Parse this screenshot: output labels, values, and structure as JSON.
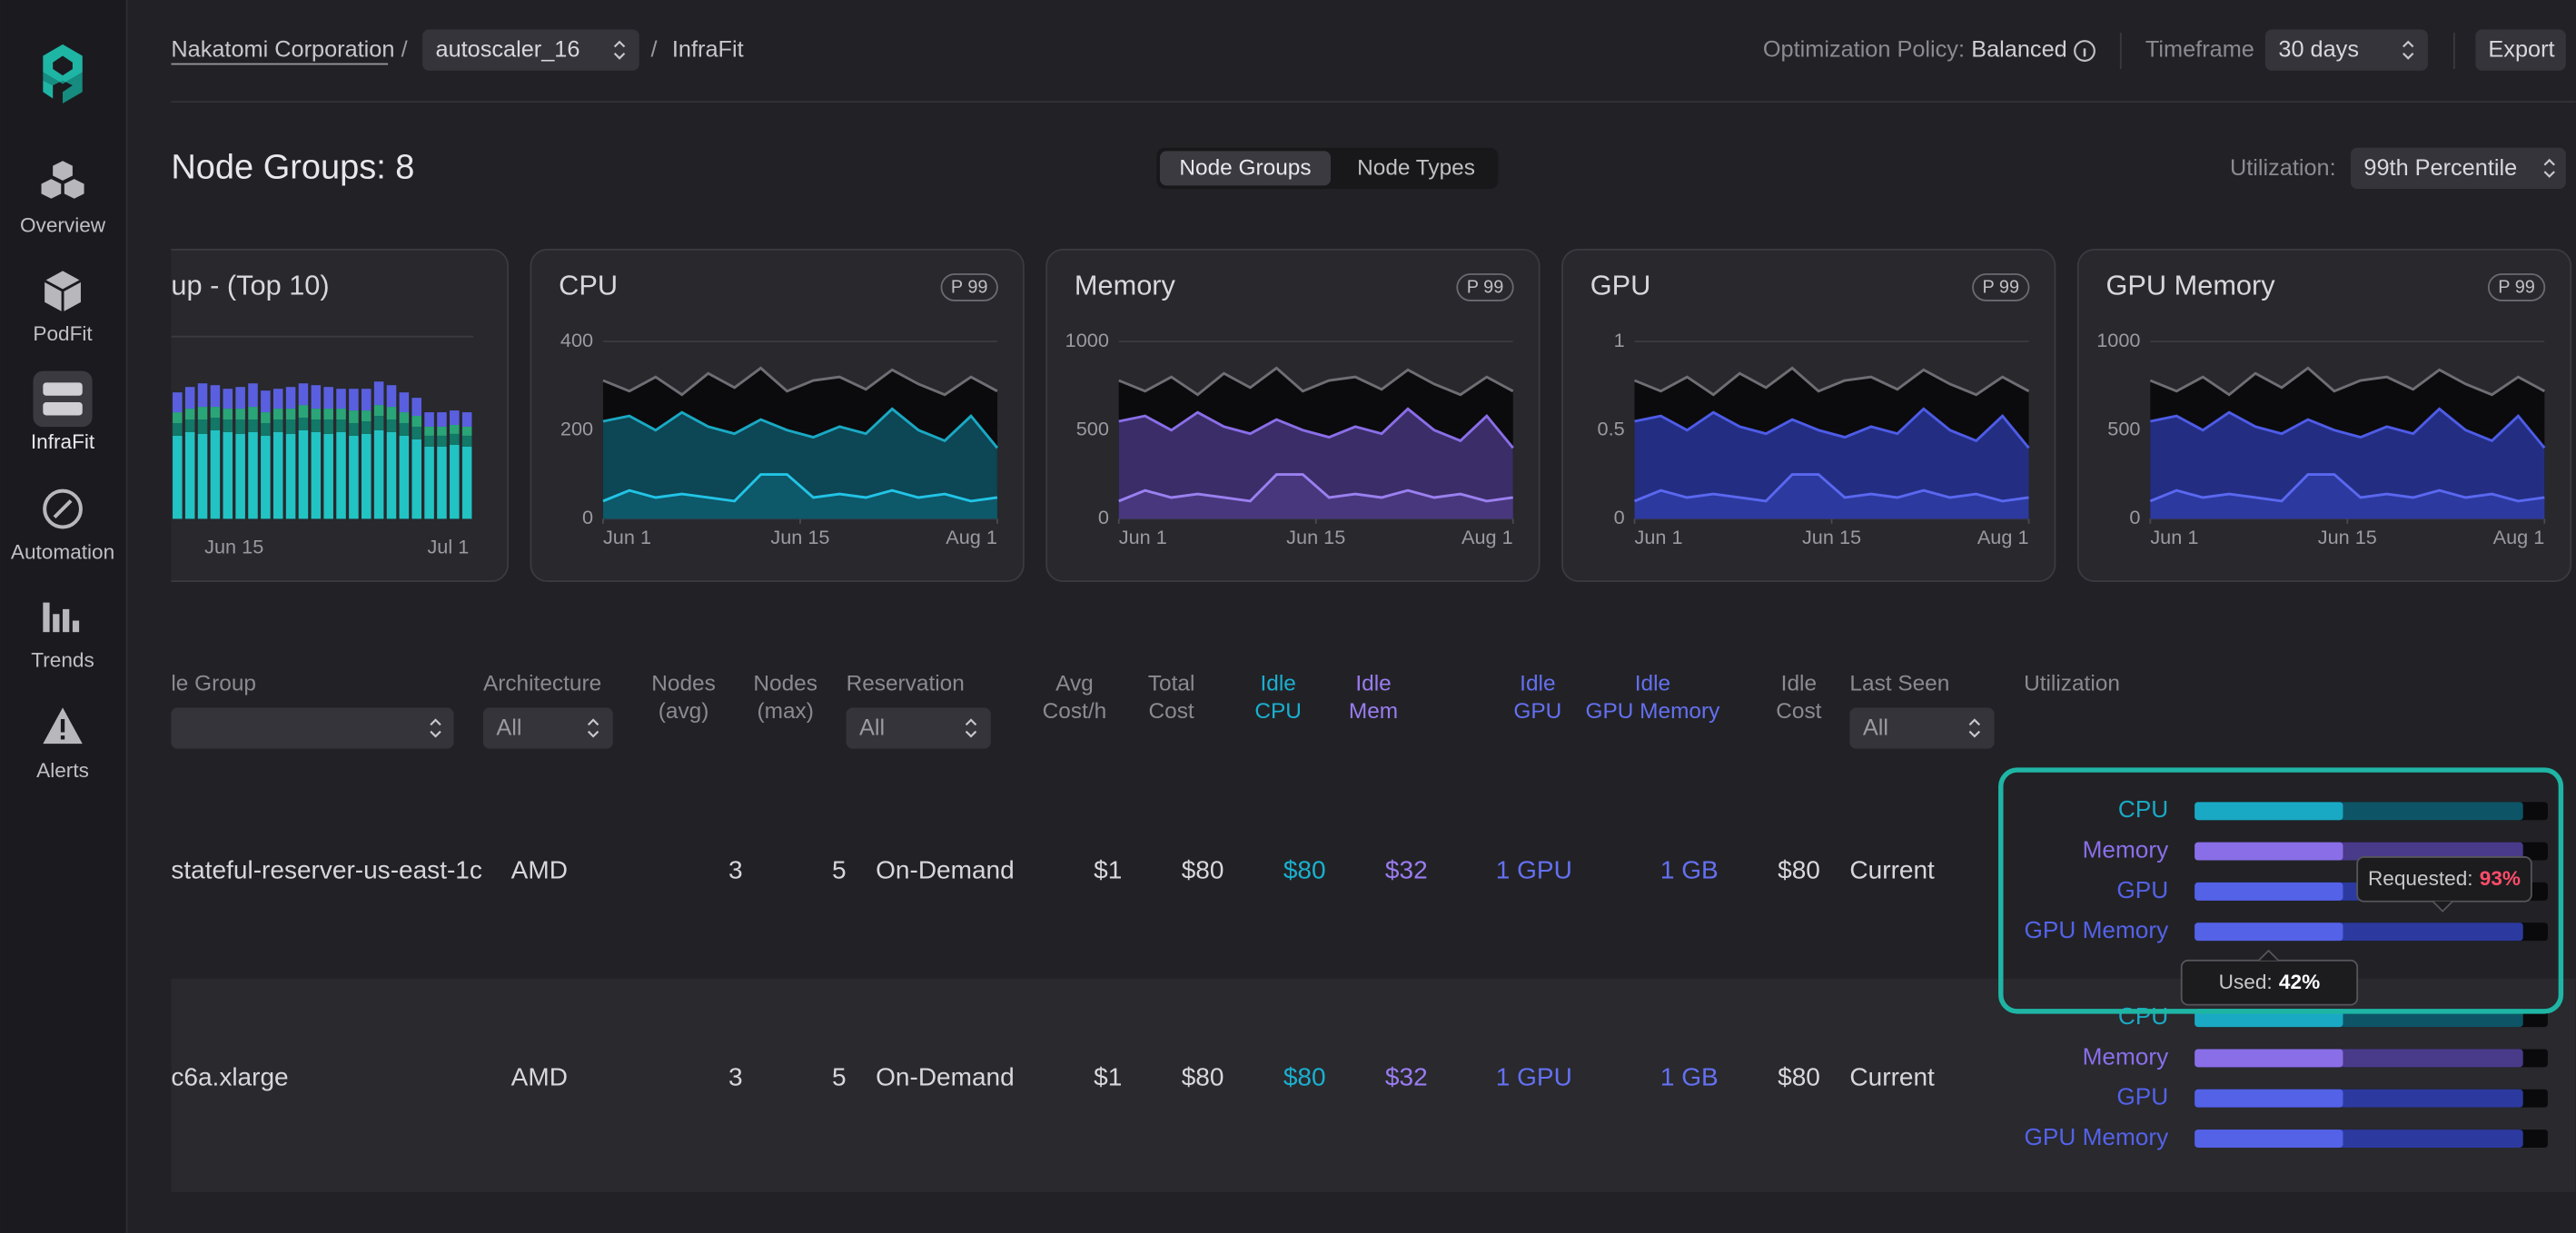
{
  "sidebar": {
    "items": [
      "Overview",
      "PodFit",
      "InfraFit",
      "Automation",
      "Trends",
      "Alerts"
    ]
  },
  "breadcrumb": {
    "org": "Nakatomi Corporation",
    "separator": "/",
    "cluster": "autoscaler_16",
    "page": "InfraFit"
  },
  "toolbar": {
    "policy_label": "Optimization Policy:",
    "policy": "Balanced",
    "timeframe_label": "Timeframe",
    "timeframe": "30 days",
    "export": "Export"
  },
  "header": {
    "title": "Node Groups: 8",
    "tabs": [
      "Node Groups",
      "Node Types"
    ],
    "utilization_label": "Utilization:",
    "utilization": "99th Percentile"
  },
  "chart_data": [
    {
      "type": "bar",
      "title": "up - (Top 10)",
      "stacked": true,
      "ylim": [
        0,
        100
      ],
      "xlim": [
        0,
        24
      ],
      "xticks": [
        {
          "value": 5,
          "label": "Jun 15"
        },
        {
          "value": 22,
          "label": "Jul 1"
        }
      ],
      "series": [
        {
          "color": "#22c3c3",
          "values": [
            46,
            48,
            47,
            49,
            48,
            47,
            48,
            46,
            48,
            47,
            49,
            48,
            47,
            48,
            46,
            47,
            49,
            48,
            46,
            44,
            40,
            40,
            41,
            40
          ]
        },
        {
          "color": "#127868",
          "values": [
            7,
            7,
            8,
            7,
            7,
            8,
            7,
            7,
            7,
            8,
            7,
            7,
            8,
            7,
            7,
            7,
            8,
            7,
            7,
            7,
            6,
            6,
            6,
            6
          ]
        },
        {
          "color": "#2aa578",
          "values": [
            6,
            6,
            7,
            6,
            6,
            6,
            7,
            6,
            6,
            6,
            7,
            6,
            6,
            6,
            7,
            6,
            6,
            7,
            6,
            6,
            5,
            5,
            5,
            5
          ]
        },
        {
          "color": "#5a5fe0",
          "values": [
            11,
            12,
            13,
            12,
            11,
            12,
            13,
            12,
            11,
            12,
            12,
            13,
            12,
            11,
            12,
            12,
            13,
            12,
            11,
            10,
            8,
            8,
            8,
            8
          ]
        }
      ]
    },
    {
      "type": "area",
      "title": "CPU",
      "badge": "P 99",
      "ylim": [
        0,
        400
      ],
      "yticks": [
        0,
        200,
        400
      ],
      "xlim": [
        0,
        15
      ],
      "xticks": [
        {
          "value": 0,
          "label": "Jun 1"
        },
        {
          "value": 7.5,
          "label": "Jun 15"
        },
        {
          "value": 15,
          "label": "Aug 1"
        }
      ],
      "grid": true,
      "series": [
        {
          "color": "#6e6e74",
          "fill": "#0a0a0c",
          "values": [
            312,
            288,
            320,
            280,
            328,
            296,
            340,
            288,
            312,
            320,
            292,
            336,
            304,
            280,
            320,
            288
          ]
        },
        {
          "color": "#1aa9c4",
          "fill": "#0e4a58",
          "values": [
            220,
            232,
            200,
            240,
            208,
            192,
            224,
            200,
            184,
            208,
            192,
            248,
            200,
            176,
            232,
            160
          ]
        },
        {
          "color": "#22c4e6",
          "fill": "#0e5a6a",
          "values": [
            40,
            64,
            48,
            56,
            48,
            40,
            100,
            100,
            48,
            56,
            48,
            64,
            48,
            56,
            40,
            48
          ]
        }
      ]
    },
    {
      "type": "area",
      "title": "Memory",
      "badge": "P 99",
      "ylim": [
        0,
        1000
      ],
      "yticks": [
        0,
        500,
        1000
      ],
      "xlim": [
        0,
        15
      ],
      "xticks": [
        {
          "value": 0,
          "label": "Jun 1"
        },
        {
          "value": 7.5,
          "label": "Jun 15"
        },
        {
          "value": 15,
          "label": "Aug 1"
        }
      ],
      "grid": true,
      "series": [
        {
          "color": "#6e6e74",
          "fill": "#0a0a0c",
          "values": [
            780,
            720,
            800,
            700,
            820,
            740,
            850,
            720,
            780,
            800,
            730,
            840,
            760,
            700,
            800,
            720
          ]
        },
        {
          "color": "#8a6ee8",
          "fill": "#3e2f6e",
          "values": [
            550,
            580,
            500,
            600,
            520,
            480,
            560,
            500,
            460,
            520,
            480,
            620,
            500,
            440,
            580,
            400
          ]
        },
        {
          "color": "#9b80f0",
          "fill": "#4a3880",
          "values": [
            100,
            160,
            120,
            140,
            120,
            100,
            250,
            250,
            120,
            140,
            120,
            160,
            120,
            140,
            100,
            120
          ]
        }
      ]
    },
    {
      "type": "area",
      "title": "GPU",
      "badge": "P 99",
      "ylim": [
        0,
        1
      ],
      "yticks": [
        0,
        0.5,
        1
      ],
      "xlim": [
        0,
        15
      ],
      "xticks": [
        {
          "value": 0,
          "label": "Jun 1"
        },
        {
          "value": 7.5,
          "label": "Jun 15"
        },
        {
          "value": 15,
          "label": "Aug 1"
        }
      ],
      "grid": true,
      "series": [
        {
          "color": "#6e6e74",
          "fill": "#0a0a0c",
          "values": [
            0.78,
            0.72,
            0.8,
            0.7,
            0.82,
            0.74,
            0.85,
            0.72,
            0.78,
            0.8,
            0.73,
            0.84,
            0.76,
            0.7,
            0.8,
            0.72
          ]
        },
        {
          "color": "#4e5ce8",
          "fill": "#25308a",
          "values": [
            0.55,
            0.58,
            0.5,
            0.6,
            0.52,
            0.48,
            0.56,
            0.5,
            0.46,
            0.52,
            0.48,
            0.62,
            0.5,
            0.44,
            0.58,
            0.4
          ]
        },
        {
          "color": "#5a68f0",
          "fill": "#2d3aa0",
          "values": [
            0.1,
            0.16,
            0.12,
            0.14,
            0.12,
            0.1,
            0.25,
            0.25,
            0.12,
            0.14,
            0.12,
            0.16,
            0.12,
            0.14,
            0.1,
            0.12
          ]
        }
      ]
    },
    {
      "type": "area",
      "title": "GPU Memory",
      "badge": "P 99",
      "ylim": [
        0,
        1000
      ],
      "yticks": [
        0,
        500,
        1000
      ],
      "xlim": [
        0,
        15
      ],
      "xticks": [
        {
          "value": 0,
          "label": "Jun 1"
        },
        {
          "value": 7.5,
          "label": "Jun 15"
        },
        {
          "value": 15,
          "label": "Aug 1"
        }
      ],
      "grid": true,
      "series": [
        {
          "color": "#6e6e74",
          "fill": "#0a0a0c",
          "values": [
            780,
            720,
            800,
            700,
            820,
            740,
            850,
            720,
            780,
            800,
            730,
            840,
            760,
            700,
            800,
            720
          ]
        },
        {
          "color": "#4e5ce8",
          "fill": "#25308a",
          "values": [
            550,
            580,
            500,
            600,
            520,
            480,
            560,
            500,
            460,
            520,
            480,
            620,
            500,
            440,
            580,
            400
          ]
        },
        {
          "color": "#5a68f0",
          "fill": "#2d3aa0",
          "values": [
            100,
            160,
            120,
            140,
            120,
            100,
            250,
            250,
            120,
            140,
            120,
            160,
            120,
            140,
            100,
            120
          ]
        }
      ]
    }
  ],
  "table": {
    "columns": [
      [
        "le Group"
      ],
      [
        "Architecture"
      ],
      [
        "Nodes",
        "(avg)"
      ],
      [
        "Nodes",
        "(max)"
      ],
      [
        "Reservation"
      ],
      [
        "Avg",
        "Cost/h"
      ],
      [
        "Total",
        "Cost"
      ],
      [
        "Idle",
        "CPU"
      ],
      [
        "Idle",
        "Mem"
      ],
      [
        "Idle",
        "GPU"
      ],
      [
        "Idle",
        "GPU Memory"
      ],
      [
        "Idle",
        "Cost"
      ],
      [
        "Last Seen"
      ],
      [
        "Utilization"
      ]
    ],
    "filters": [
      "All",
      "All",
      "All"
    ],
    "rows": [
      {
        "cells": [
          "stateful-reserver-us-east-1c",
          "AMD",
          3,
          5,
          "On-Demand",
          "$1",
          "$80",
          "$80",
          "$32",
          "1 GPU",
          "1 GB",
          "$80",
          "Current"
        ],
        "utilization": [
          {
            "name": "CPU",
            "used": 42,
            "requested": 93,
            "color": "#1aa9c4",
            "requested_color": "#0d5566"
          },
          {
            "name": "Memory",
            "used": 42,
            "requested": 93,
            "color": "#8a6ee8",
            "requested_color": "#4a3a8a"
          },
          {
            "name": "GPU",
            "used": 42,
            "requested": 93,
            "color": "#5462e8",
            "requested_color": "#2c3aa0"
          },
          {
            "name": "GPU Memory",
            "used": 42,
            "requested": 93,
            "color": "#5462e8",
            "requested_color": "#2c3aa0"
          }
        ]
      },
      {
        "cells": [
          "c6a.xlarge",
          "AMD",
          3,
          5,
          "On-Demand",
          "$1",
          "$80",
          "$80",
          "$32",
          "1 GPU",
          "1 GB",
          "$80",
          "Current"
        ],
        "utilization": [
          {
            "name": "CPU",
            "used": 42,
            "requested": 93,
            "color": "#1aa9c4",
            "requested_color": "#0d5566"
          },
          {
            "name": "Memory",
            "used": 42,
            "requested": 93,
            "color": "#8a6ee8",
            "requested_color": "#4a3a8a"
          },
          {
            "name": "GPU",
            "used": 42,
            "requested": 93,
            "color": "#5462e8",
            "requested_color": "#2c3aa0"
          },
          {
            "name": "GPU Memory",
            "used": 42,
            "requested": 93,
            "color": "#5462e8",
            "requested_color": "#2c3aa0"
          }
        ]
      }
    ]
  },
  "tooltip": {
    "requested_label": "Requested:",
    "requested": "93%",
    "used_label": "Used:",
    "used": "42%"
  }
}
